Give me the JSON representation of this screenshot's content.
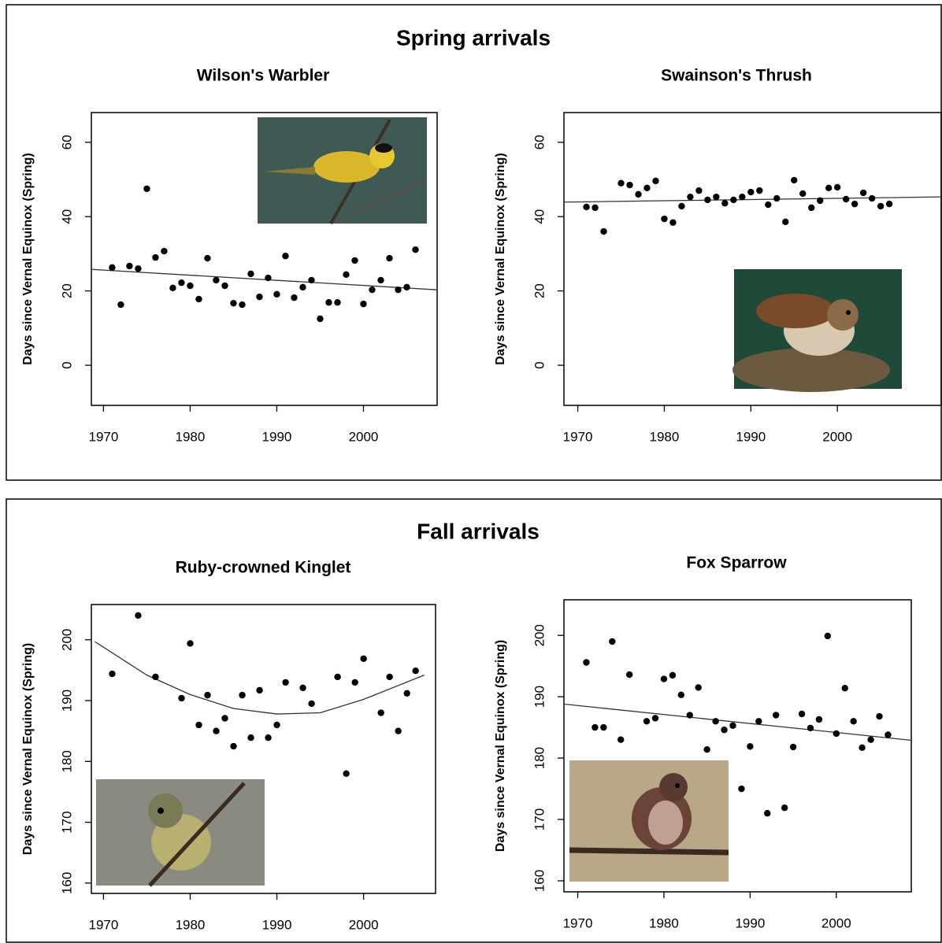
{
  "panels": [
    {
      "title": "Spring arrivals"
    },
    {
      "title": "Fall arrivals"
    }
  ],
  "chart_data": [
    {
      "type": "scatter",
      "title": "Wilson's Warbler",
      "ylabel": "Days since Vernal Equinox (Spring)",
      "color": "#000000",
      "x": [
        1971,
        1972,
        1973,
        1974,
        1975,
        1976,
        1977,
        1978,
        1979,
        1980,
        1981,
        1982,
        1983,
        1984,
        1985,
        1986,
        1987,
        1988,
        1989,
        1990,
        1991,
        1992,
        1993,
        1994,
        1995,
        1996,
        1997,
        1998,
        1999,
        2000,
        2001,
        2002,
        2003,
        2004,
        2005,
        2006
      ],
      "values": [
        26.3,
        16.3,
        26.7,
        26,
        47.5,
        29,
        30.7,
        20.8,
        22.2,
        21.4,
        17.8,
        28.8,
        22.9,
        21.4,
        16.7,
        16.3,
        24.6,
        18.4,
        23.5,
        19.1,
        29.4,
        18.2,
        21,
        22.9,
        12.5,
        16.9,
        16.9,
        24.4,
        28.2,
        16.5,
        20.3,
        22.9,
        28.8,
        20.3,
        21,
        31.1
      ],
      "fit": {
        "x": [
          1968.6,
          2008.5
        ],
        "values": [
          25.8,
          20.3
        ]
      },
      "xlim": [
        1968.6,
        2008.5
      ],
      "ylim": [
        -10.8,
        68
      ],
      "xticks": [
        1970,
        1980,
        1990,
        2000
      ],
      "yticks": [
        0,
        20,
        40,
        60
      ]
    },
    {
      "type": "scatter",
      "title": "Swainson's Thrush",
      "ylabel": "Days since Vernal Equinox (Spring)",
      "color": "#000000",
      "x": [
        1971,
        1972,
        1973,
        1975,
        1976,
        1977,
        1978,
        1979,
        1980,
        1981,
        1982,
        1983,
        1984,
        1985,
        1986,
        1987,
        1988,
        1989,
        1990,
        1991,
        1992,
        1993,
        1994,
        1995,
        1996,
        1997,
        1998,
        1999,
        2000,
        2001,
        2002,
        2003,
        2004,
        2005,
        2006
      ],
      "values": [
        42.6,
        42.4,
        36,
        49,
        48.5,
        46,
        47.7,
        49.6,
        39.4,
        38.4,
        42.8,
        45.3,
        47,
        44.5,
        45.3,
        43.6,
        44.5,
        45.3,
        46.6,
        47,
        43.2,
        44.9,
        38.6,
        49.8,
        46.2,
        42.4,
        44.3,
        47.7,
        47.9,
        44.7,
        43.4,
        46.4,
        44.9,
        42.8,
        43.4
      ],
      "fit": {
        "x": [
          1968.4,
          2012
        ],
        "values": [
          43.9,
          45.3
        ]
      },
      "xlim": [
        1968.4,
        2012
      ],
      "ylim": [
        -10.8,
        68
      ],
      "xticks": [
        1970,
        1980,
        1990,
        2000
      ],
      "yticks": [
        0,
        20,
        40,
        60
      ]
    },
    {
      "type": "scatter",
      "title": "Ruby-crowned Kinglet",
      "ylabel": "Days since Vernal Equinox (Spring)",
      "color": "#000000",
      "x": [
        1971,
        1974,
        1976,
        1979,
        1980,
        1981,
        1982,
        1983,
        1984,
        1985,
        1986,
        1987,
        1988,
        1989,
        1990,
        1991,
        1993,
        1994,
        1997,
        1998,
        1999,
        2000,
        2002,
        2003,
        2004,
        2005,
        2006
      ],
      "values": [
        194.4,
        204,
        193.9,
        190.4,
        199.4,
        186,
        190.9,
        185,
        187.1,
        182.5,
        190.9,
        183.9,
        191.7,
        183.9,
        186,
        193,
        192.1,
        189.5,
        193.9,
        178,
        193,
        196.9,
        188,
        193.9,
        185,
        191.2,
        194.9
      ],
      "fit": {
        "x": [
          1969,
          1975,
          1980,
          1985,
          1990,
          1995,
          2000,
          2007
        ],
        "values": [
          199.7,
          194.2,
          191,
          188.7,
          187.8,
          188,
          190.2,
          194.2
        ]
      },
      "xlim": [
        1968.6,
        2008.3
      ],
      "ylim": [
        158.3,
        205.8
      ],
      "xticks": [
        1970,
        1980,
        1990,
        2000
      ],
      "yticks": [
        160,
        170,
        180,
        190,
        200
      ]
    },
    {
      "type": "scatter",
      "title": "Fox Sparrow",
      "ylabel": "Days since Vernal Equinox (Spring)",
      "color": "#000000",
      "x": [
        1971,
        1972,
        1973,
        1974,
        1975,
        1976,
        1978,
        1979,
        1980,
        1981,
        1982,
        1983,
        1984,
        1985,
        1986,
        1987,
        1988,
        1989,
        1990,
        1991,
        1992,
        1993,
        1994,
        1995,
        1996,
        1997,
        1998,
        1999,
        2000,
        2001,
        2002,
        2003,
        2004,
        2005,
        2006
      ],
      "values": [
        195.6,
        185,
        185,
        199,
        183,
        193.6,
        186,
        186.5,
        192.9,
        193.5,
        190.3,
        187,
        191.5,
        181.4,
        186,
        184.6,
        185.3,
        175,
        181.9,
        186,
        171,
        187,
        171.9,
        181.8,
        187.2,
        184.9,
        186.3,
        199.9,
        184,
        191.4,
        186,
        181.7,
        183,
        186.8,
        183.8
      ],
      "fit": {
        "x": [
          1968.4,
          2008.7
        ],
        "values": [
          188.8,
          182.9
        ]
      },
      "xlim": [
        1968.4,
        2008.7
      ],
      "ylim": [
        158.2,
        205.8
      ],
      "xticks": [
        1970,
        1980,
        1990,
        2000
      ],
      "yticks": [
        160,
        170,
        180,
        190,
        200
      ]
    }
  ]
}
